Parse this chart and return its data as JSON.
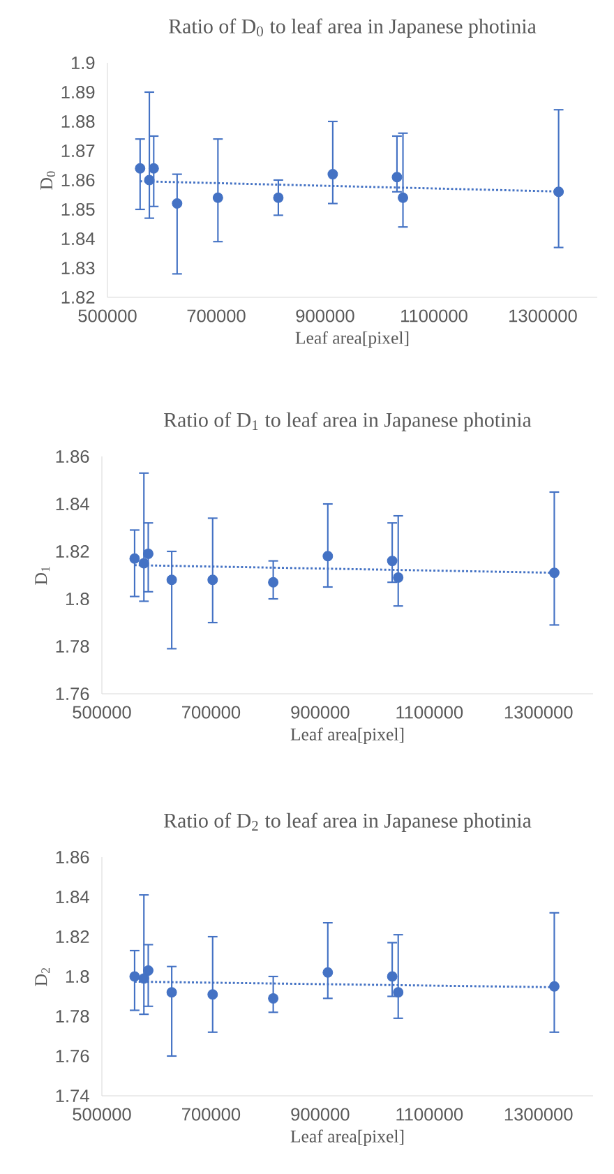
{
  "chart_data": [
    {
      "type": "scatter",
      "title": "Ratio of D$_{0}$ to leaf area in Japanese photinia",
      "xlabel": "Leaf area[pixel]",
      "ylabel": "D$_{0}$",
      "xlim": [
        500000,
        1400000
      ],
      "xticks": [
        500000,
        700000,
        900000,
        1100000,
        1300000
      ],
      "ylim": [
        1.82,
        1.9
      ],
      "yticks": [
        1.82,
        1.83,
        1.84,
        1.85,
        1.86,
        1.87,
        1.88,
        1.89,
        1.9
      ],
      "series": [
        {
          "color": "#4472c4",
          "marker": "circle",
          "x": [
            560000,
            577000,
            585000,
            628000,
            703000,
            814000,
            914000,
            1032000,
            1043000,
            1329000
          ],
          "values": [
            1.864,
            1.86,
            1.864,
            1.852,
            1.854,
            1.854,
            1.862,
            1.861,
            1.854,
            1.856
          ],
          "errors": [
            [
              1.85,
              1.874
            ],
            [
              1.847,
              1.89
            ],
            [
              1.851,
              1.875
            ],
            [
              1.828,
              1.862
            ],
            [
              1.839,
              1.874
            ],
            [
              1.848,
              1.86
            ],
            [
              1.852,
              1.88
            ],
            [
              1.856,
              1.875
            ],
            [
              1.844,
              1.876
            ],
            [
              1.837,
              1.884
            ]
          ]
        },
        {
          "type": "line",
          "color": "#4472c4",
          "marker": "none",
          "line_style": "dotted",
          "x": [
            560000,
            1329000
          ],
          "values": [
            1.8596,
            1.8561
          ]
        }
      ]
    },
    {
      "type": "scatter",
      "title": "Ratio of D$_{1}$ to leaf area in Japanese photinia",
      "xlabel": "Leaf area[pixel]",
      "ylabel": "D$_{1}$",
      "xlim": [
        500000,
        1400000
      ],
      "xticks": [
        500000,
        700000,
        900000,
        1100000,
        1300000
      ],
      "ylim": [
        1.76,
        1.86
      ],
      "yticks": [
        1.76,
        1.78,
        1.8,
        1.82,
        1.84,
        1.86
      ],
      "series": [
        {
          "color": "#4472c4",
          "marker": "circle",
          "x": [
            560000,
            577000,
            585000,
            628000,
            703000,
            814000,
            914000,
            1032000,
            1043000,
            1329000
          ],
          "values": [
            1.817,
            1.815,
            1.819,
            1.808,
            1.808,
            1.807,
            1.818,
            1.816,
            1.809,
            1.811
          ],
          "errors": [
            [
              1.801,
              1.829
            ],
            [
              1.799,
              1.853
            ],
            [
              1.803,
              1.832
            ],
            [
              1.779,
              1.82
            ],
            [
              1.79,
              1.834
            ],
            [
              1.8,
              1.816
            ],
            [
              1.805,
              1.84
            ],
            [
              1.807,
              1.832
            ],
            [
              1.797,
              1.835
            ],
            [
              1.789,
              1.845
            ]
          ]
        },
        {
          "type": "line",
          "color": "#4472c4",
          "marker": "none",
          "line_style": "dotted",
          "x": [
            560000,
            1329000
          ],
          "values": [
            1.8142,
            1.811
          ]
        }
      ]
    },
    {
      "type": "scatter",
      "title": "Ratio of D$_{2}$ to leaf area in Japanese photinia",
      "xlabel": "Leaf area[pixel]",
      "ylabel": "D$_{2}$",
      "xlim": [
        500000,
        1400000
      ],
      "xticks": [
        500000,
        700000,
        900000,
        1100000,
        1300000
      ],
      "ylim": [
        1.74,
        1.86
      ],
      "yticks": [
        1.74,
        1.76,
        1.78,
        1.8,
        1.82,
        1.84,
        1.86
      ],
      "series": [
        {
          "color": "#4472c4",
          "marker": "circle",
          "x": [
            560000,
            577000,
            585000,
            628000,
            703000,
            814000,
            914000,
            1032000,
            1043000,
            1329000
          ],
          "values": [
            1.8,
            1.799,
            1.803,
            1.792,
            1.791,
            1.789,
            1.802,
            1.8,
            1.792,
            1.795
          ],
          "errors": [
            [
              1.783,
              1.813
            ],
            [
              1.781,
              1.841
            ],
            [
              1.785,
              1.816
            ],
            [
              1.76,
              1.805
            ],
            [
              1.772,
              1.82
            ],
            [
              1.782,
              1.8
            ],
            [
              1.789,
              1.827
            ],
            [
              1.79,
              1.817
            ],
            [
              1.779,
              1.821
            ],
            [
              1.772,
              1.832
            ]
          ]
        },
        {
          "type": "line",
          "color": "#4472c4",
          "marker": "none",
          "line_style": "dotted",
          "x": [
            560000,
            1329000
          ],
          "values": [
            1.7974,
            1.7946
          ]
        }
      ]
    }
  ]
}
